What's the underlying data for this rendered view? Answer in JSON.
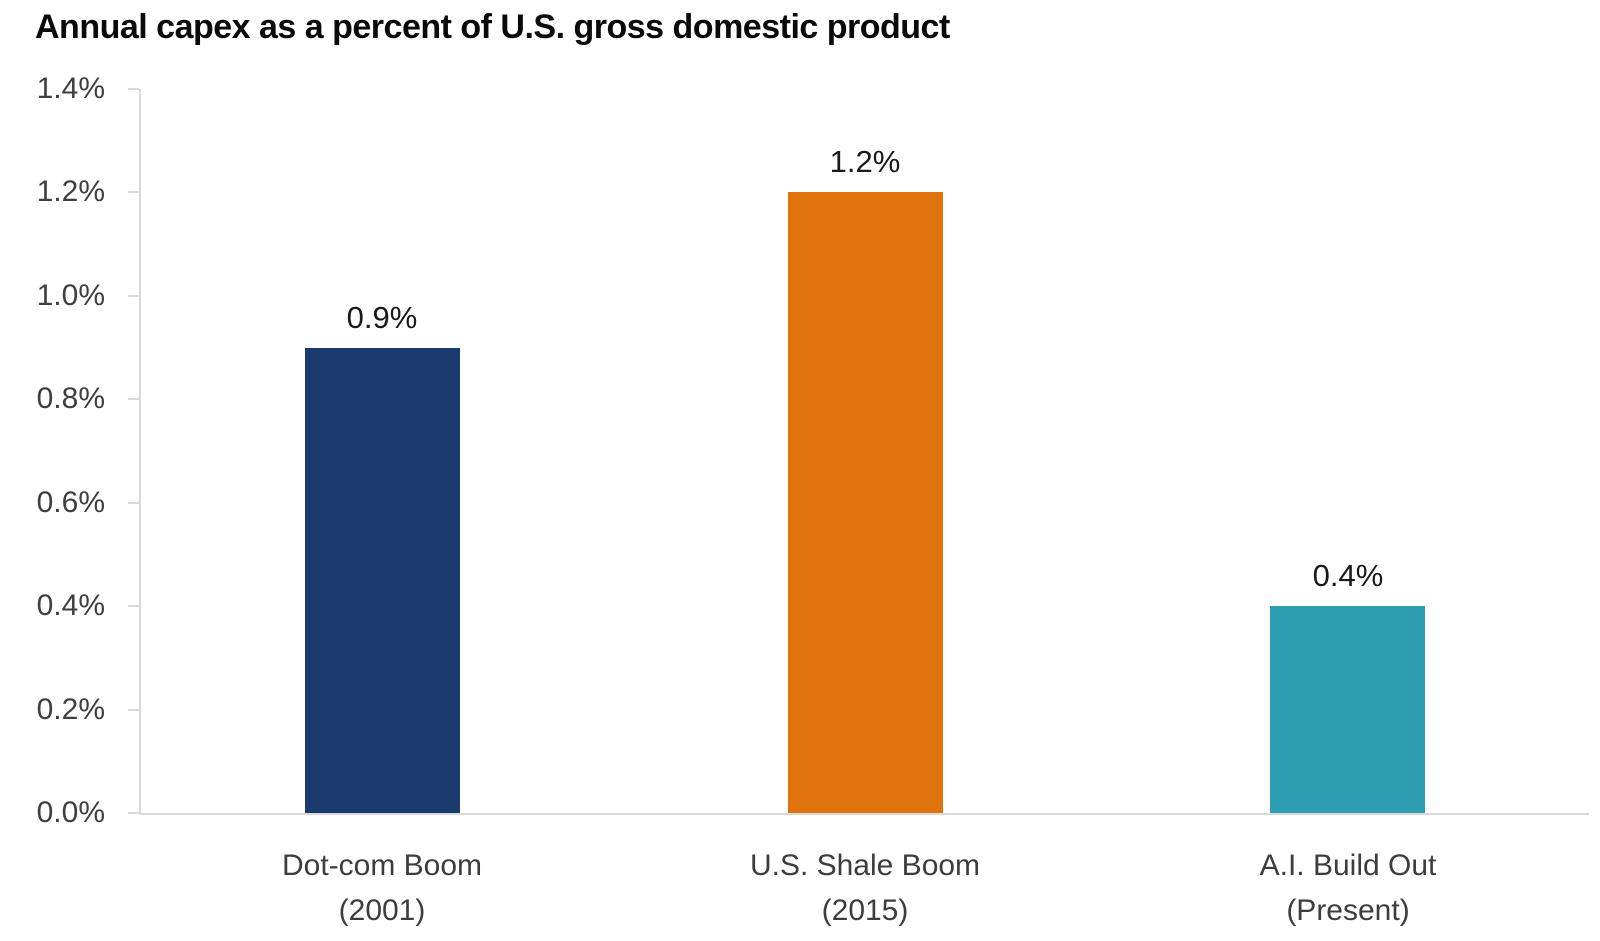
{
  "page": {
    "title": "Annual capex as a percent of U.S. gross domestic product"
  },
  "colors": {
    "background": "#ffffff",
    "axis_line": "#d9d9d9",
    "title_text": "#0a0a0a",
    "ytick_text": "#3f3f3f",
    "value_label_text": "#1a1a1a",
    "category_text": "#3d3d3d",
    "bar_navy": "#1b3a6d",
    "bar_orange": "#e0730d",
    "bar_teal": "#2d9db1"
  },
  "chart_data": {
    "type": "bar",
    "title": "Annual capex as a percent of U.S. gross domestic product",
    "categories": [
      "Dot-com Boom (2001)",
      "U.S. Shale Boom (2015)",
      "A.I. Build Out (Present)"
    ],
    "category_lines": [
      [
        "Dot-com Boom",
        "(2001)"
      ],
      [
        "U.S. Shale Boom",
        "(2015)"
      ],
      [
        "A.I. Build Out",
        "(Present)"
      ]
    ],
    "values": [
      0.9,
      1.2,
      0.4
    ],
    "value_labels": [
      "0.9%",
      "1.2%",
      "0.4%"
    ],
    "bar_colors": [
      "#1b3a6d",
      "#e0730d",
      "#2d9db1"
    ],
    "xlabel": "",
    "ylabel": "",
    "ylim": [
      0,
      1.4
    ],
    "ytick_step": 0.2,
    "ytick_labels": [
      "0.0%",
      "0.2%",
      "0.4%",
      "0.6%",
      "0.8%",
      "1.0%",
      "1.2%",
      "1.4%"
    ],
    "grid": false,
    "legend": false,
    "legend_position": "none",
    "unit": "%"
  }
}
